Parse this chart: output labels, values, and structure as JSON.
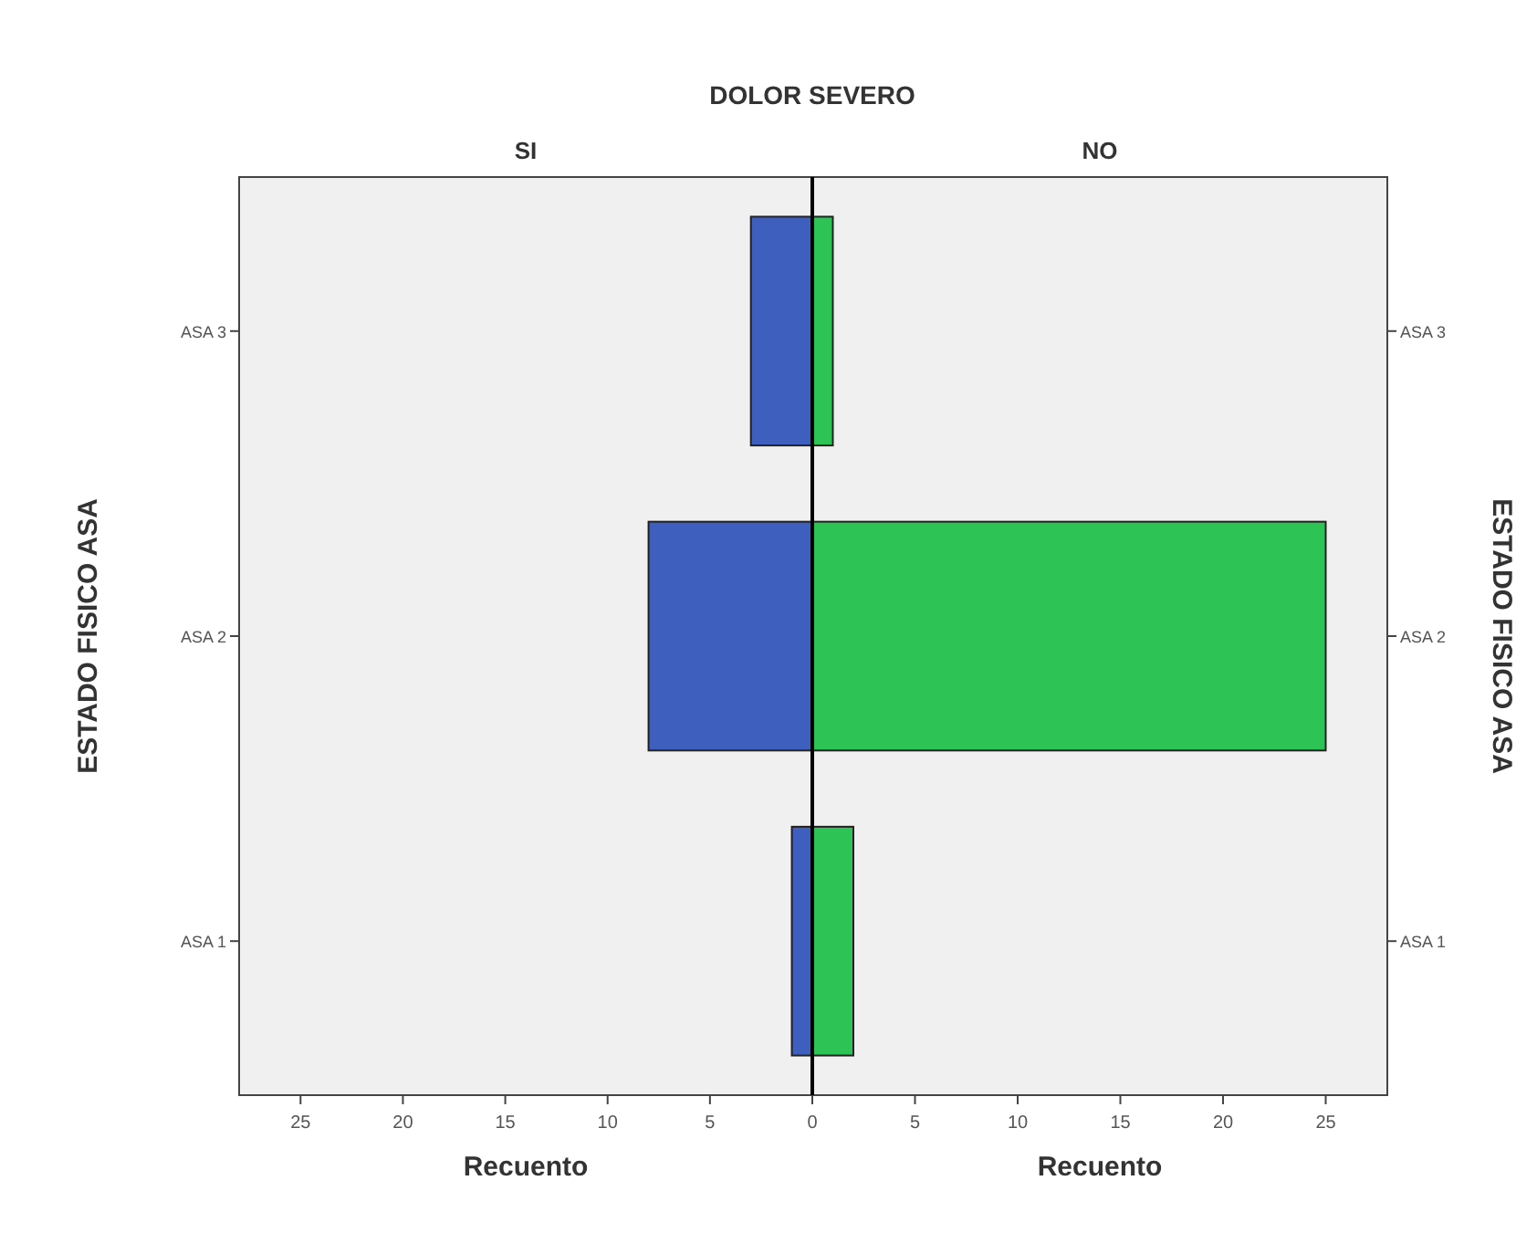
{
  "chart_data": [
    {
      "type": "bar",
      "orientation": "horizontal",
      "title": "DOLOR SEVERO",
      "subtitle": "SI",
      "xlabel": "Recuento",
      "ylabel": "ESTADO FISICO ASA",
      "categories": [
        "ASA 3",
        "ASA 2",
        "ASA 1"
      ],
      "values": [
        3,
        8,
        1
      ],
      "color": "#3f5fbf",
      "xlim": [
        28,
        0
      ],
      "xticks": [
        25,
        20,
        15,
        10,
        5,
        0
      ]
    },
    {
      "type": "bar",
      "orientation": "horizontal",
      "subtitle": "NO",
      "xlabel": "Recuento",
      "ylabel": "ESTADO FISICO ASA",
      "categories": [
        "ASA 3",
        "ASA 2",
        "ASA 1"
      ],
      "values": [
        1,
        25,
        2
      ],
      "color": "#2ec455",
      "xlim": [
        0,
        28
      ],
      "xticks": [
        {
          "value": 0,
          "label": null
        },
        5,
        10,
        15,
        20,
        25
      ]
    }
  ]
}
